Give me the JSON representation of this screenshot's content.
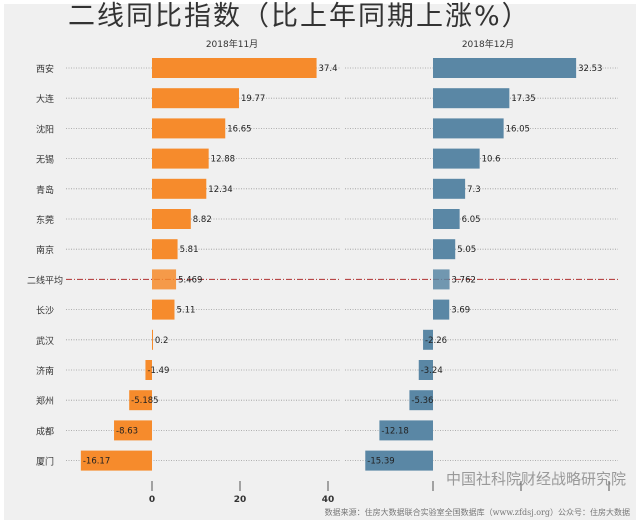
{
  "title": "二线同比指数（比上年同期上涨%）",
  "chart_data": [
    {
      "type": "bar",
      "orientation": "horizontal",
      "title": "2018年11月",
      "categories": [
        "西安",
        "大连",
        "沈阳",
        "无锡",
        "青岛",
        "东莞",
        "南京",
        "二线平均",
        "长沙",
        "武汉",
        "济南",
        "郑州",
        "成都",
        "厦门"
      ],
      "values": [
        37.4,
        19.77,
        16.65,
        12.88,
        12.34,
        8.82,
        5.81,
        5.469,
        5.11,
        0.2,
        -1.49,
        -5.185,
        -8.63,
        -16.17
      ],
      "color": "#f68b2c",
      "xticks": [
        0,
        20,
        40
      ]
    },
    {
      "type": "bar",
      "orientation": "horizontal",
      "title": "2018年12月",
      "categories": [
        "西安",
        "大连",
        "沈阳",
        "无锡",
        "青岛",
        "东莞",
        "南京",
        "二线平均",
        "长沙",
        "武汉",
        "济南",
        "郑州",
        "成都",
        "厦门"
      ],
      "values": [
        32.53,
        17.35,
        16.05,
        10.6,
        7.3,
        6.05,
        5.05,
        3.762,
        3.69,
        -2.26,
        -3.24,
        -5.36,
        -12.18,
        -15.39
      ],
      "color": "#5a87a5",
      "xticks": [
        0,
        20,
        40
      ]
    }
  ],
  "average_category": "二线平均",
  "average_line_color": "#b03030",
  "source": "数据来源：住房大数据联合实验室全国数据库（www.zfdsj.org）公众号：住房大数据",
  "watermark": "中国社科院财经战略研究院"
}
